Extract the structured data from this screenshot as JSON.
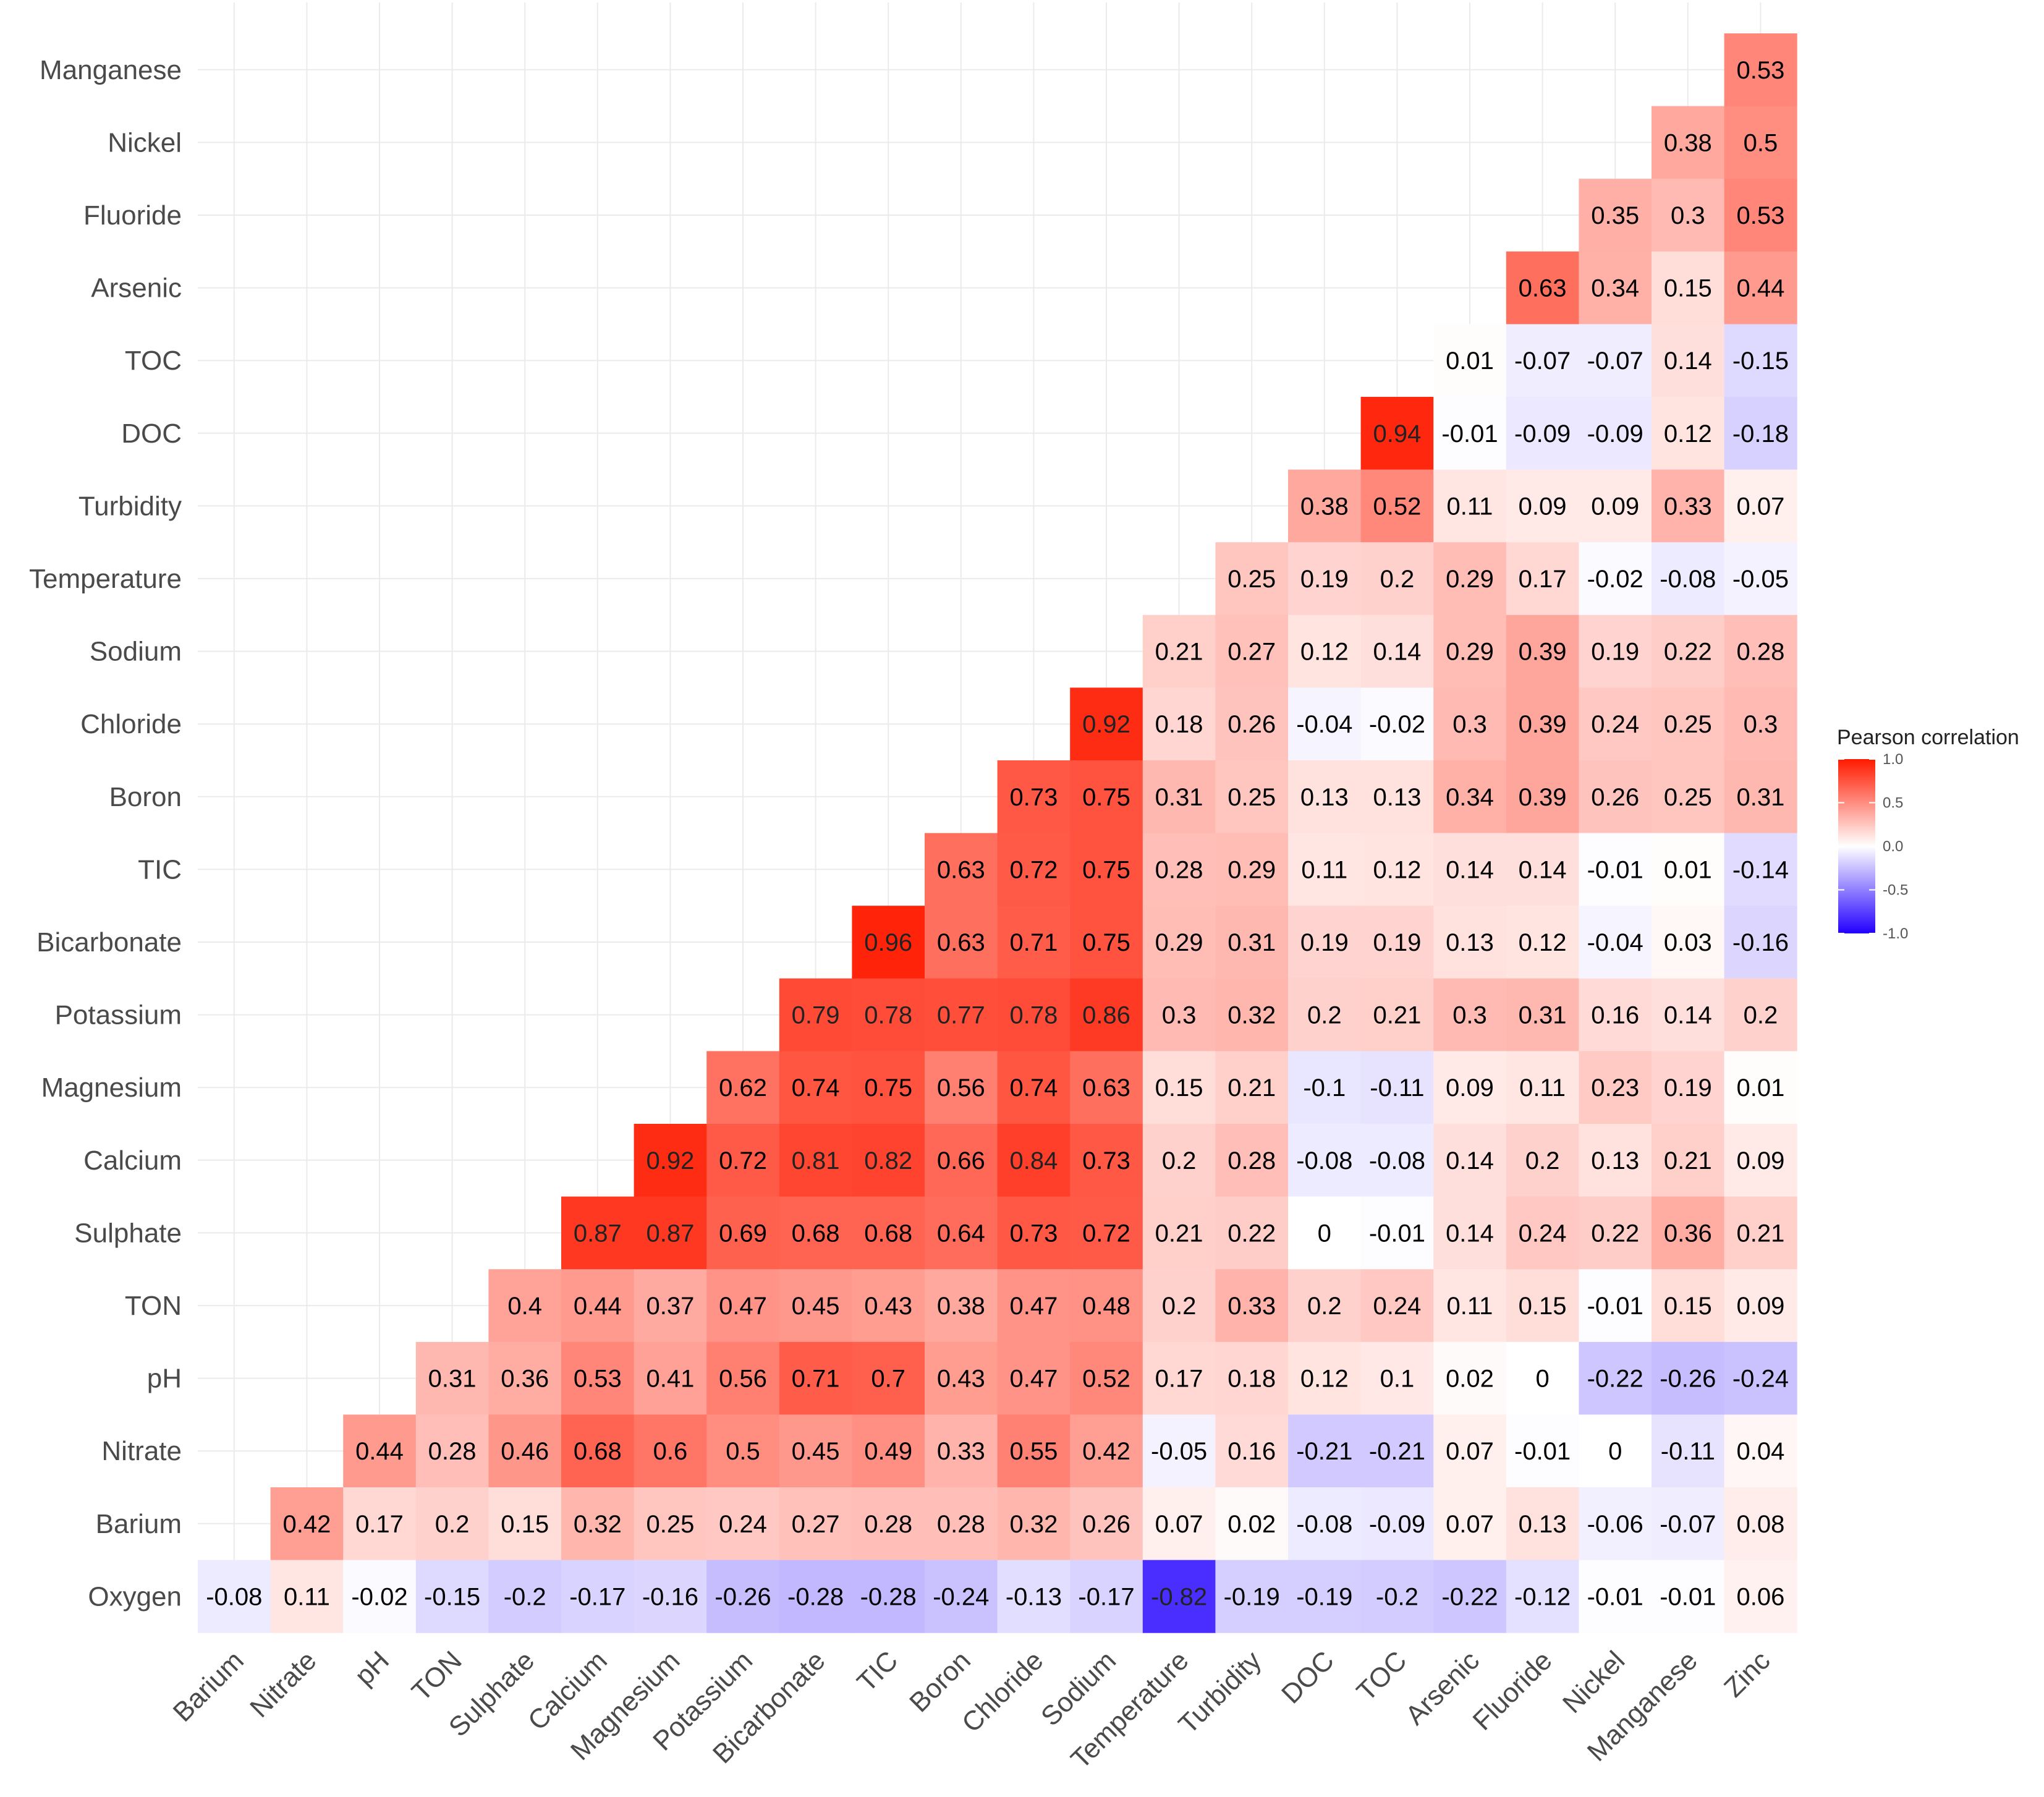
{
  "chart_data": {
    "type": "heatmap",
    "title": "",
    "x_variables": [
      "Barium",
      "Nitrate",
      "pH",
      "TON",
      "Sulphate",
      "Calcium",
      "Magnesium",
      "Potassium",
      "Bicarbonate",
      "TIC",
      "Boron",
      "Chloride",
      "Sodium",
      "Temperature",
      "Turbidity",
      "DOC",
      "TOC",
      "Arsenic",
      "Fluoride",
      "Nickel",
      "Manganese",
      "Zinc"
    ],
    "y_variables_top_to_bottom": [
      "Manganese",
      "Nickel",
      "Fluoride",
      "Arsenic",
      "TOC",
      "DOC",
      "Turbidity",
      "Temperature",
      "Sodium",
      "Chloride",
      "Boron",
      "TIC",
      "Bicarbonate",
      "Potassium",
      "Magnesium",
      "Calcium",
      "Sulphate",
      "TON",
      "pH",
      "Nitrate",
      "Barium",
      "Oxygen"
    ],
    "row_values": {
      "Manganese": [
        "0.53"
      ],
      "Nickel": [
        "0.38",
        "0.5"
      ],
      "Fluoride": [
        "0.35",
        "0.3",
        "0.53"
      ],
      "Arsenic": [
        "0.63",
        "0.34",
        "0.15",
        "0.44"
      ],
      "TOC": [
        "0.01",
        "-0.07",
        "-0.07",
        "0.14",
        "-0.15"
      ],
      "DOC": [
        "0.94",
        "-0.01",
        "-0.09",
        "-0.09",
        "0.12",
        "-0.18"
      ],
      "Turbidity": [
        "0.38",
        "0.52",
        "0.11",
        "0.09",
        "0.09",
        "0.33",
        "0.07"
      ],
      "Temperature": [
        "0.25",
        "0.19",
        "0.2",
        "0.29",
        "0.17",
        "-0.02",
        "-0.08",
        "-0.05"
      ],
      "Sodium": [
        "0.21",
        "0.27",
        "0.12",
        "0.14",
        "0.29",
        "0.39",
        "0.19",
        "0.22",
        "0.28"
      ],
      "Chloride": [
        "0.92",
        "0.18",
        "0.26",
        "-0.04",
        "-0.02",
        "0.3",
        "0.39",
        "0.24",
        "0.25",
        "0.3"
      ],
      "Boron": [
        "0.73",
        "0.75",
        "0.31",
        "0.25",
        "0.13",
        "0.13",
        "0.34",
        "0.39",
        "0.26",
        "0.25",
        "0.31"
      ],
      "TIC": [
        "0.63",
        "0.72",
        "0.75",
        "0.28",
        "0.29",
        "0.11",
        "0.12",
        "0.14",
        "0.14",
        "-0.01",
        "0.01",
        "-0.14"
      ],
      "Bicarbonate": [
        "0.96",
        "0.63",
        "0.71",
        "0.75",
        "0.29",
        "0.31",
        "0.19",
        "0.19",
        "0.13",
        "0.12",
        "-0.04",
        "0.03",
        "-0.16"
      ],
      "Potassium": [
        "0.79",
        "0.78",
        "0.77",
        "0.78",
        "0.86",
        "0.3",
        "0.32",
        "0.2",
        "0.21",
        "0.3",
        "0.31",
        "0.16",
        "0.14",
        "0.2"
      ],
      "Magnesium": [
        "0.62",
        "0.74",
        "0.75",
        "0.56",
        "0.74",
        "0.63",
        "0.15",
        "0.21",
        "-0.1",
        "-0.11",
        "0.09",
        "0.11",
        "0.23",
        "0.19",
        "0.01"
      ],
      "Calcium": [
        "0.92",
        "0.72",
        "0.81",
        "0.82",
        "0.66",
        "0.84",
        "0.73",
        "0.2",
        "0.28",
        "-0.08",
        "-0.08",
        "0.14",
        "0.2",
        "0.13",
        "0.21",
        "0.09"
      ],
      "Sulphate": [
        "0.87",
        "0.87",
        "0.69",
        "0.68",
        "0.68",
        "0.64",
        "0.73",
        "0.72",
        "0.21",
        "0.22",
        "0",
        "-0.01",
        "0.14",
        "0.24",
        "0.22",
        "0.36",
        "0.21"
      ],
      "TON": [
        "0.4",
        "0.44",
        "0.37",
        "0.47",
        "0.45",
        "0.43",
        "0.38",
        "0.47",
        "0.48",
        "0.2",
        "0.33",
        "0.2",
        "0.24",
        "0.11",
        "0.15",
        "-0.01",
        "0.15",
        "0.09"
      ],
      "pH": [
        "0.31",
        "0.36",
        "0.53",
        "0.41",
        "0.56",
        "0.71",
        "0.7",
        "0.43",
        "0.47",
        "0.52",
        "0.17",
        "0.18",
        "0.12",
        "0.1",
        "0.02",
        "0",
        "-0.22",
        "-0.26",
        "-0.24"
      ],
      "Nitrate": [
        "0.44",
        "0.28",
        "0.46",
        "0.68",
        "0.6",
        "0.5",
        "0.45",
        "0.49",
        "0.33",
        "0.55",
        "0.42",
        "-0.05",
        "0.16",
        "-0.21",
        "-0.21",
        "0.07",
        "-0.01",
        "0",
        "-0.11",
        "0.04"
      ],
      "Barium": [
        "0.42",
        "0.17",
        "0.2",
        "0.15",
        "0.32",
        "0.25",
        "0.24",
        "0.27",
        "0.28",
        "0.28",
        "0.32",
        "0.26",
        "0.07",
        "0.02",
        "-0.08",
        "-0.09",
        "0.07",
        "0.13",
        "-0.06",
        "-0.07",
        "0.08"
      ],
      "Oxygen": [
        "-0.08",
        "0.11",
        "-0.02",
        "-0.15",
        "-0.2",
        "-0.17",
        "-0.16",
        "-0.26",
        "-0.28",
        "-0.28",
        "-0.24",
        "-0.13",
        "-0.17",
        "-0.82",
        "-0.19",
        "-0.19",
        "-0.2",
        "-0.22",
        "-0.12",
        "-0.01",
        "-0.01",
        "0.06"
      ]
    },
    "color_scale": {
      "low": "#2200ff",
      "mid": "#ffffff",
      "high": "#ff1a00",
      "range": [
        -1,
        1
      ]
    },
    "legend": {
      "title": "Pearson correlation",
      "ticks": [
        "1.0",
        "0.5",
        "0.0",
        "-0.5",
        "-1.0"
      ],
      "tick_values": [
        1.0,
        0.5,
        0.0,
        -0.5,
        -1.0
      ],
      "placement": "right"
    },
    "grid": true
  }
}
